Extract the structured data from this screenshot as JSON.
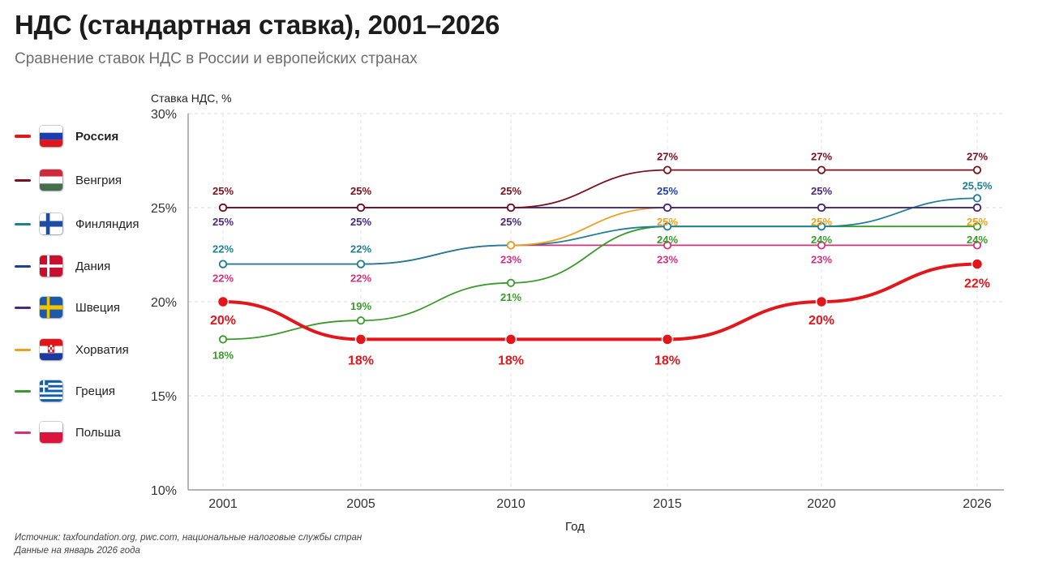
{
  "title": "НДС (стандартная ставка), 2001–2026",
  "subtitle": "Сравнение ставок НДС в России и европейских странах",
  "footer": {
    "source": "Источник: taxfoundation.org, pwc.com, национальные налоговые службы стран",
    "date_note": "Данные на январь 2026 года"
  },
  "chart_data": {
    "type": "line",
    "ylabel": "Ставка НДС, %",
    "xlabel": "Год",
    "x": [
      2001,
      2005,
      2010,
      2015,
      2020,
      2026
    ],
    "ylim": [
      10,
      30
    ],
    "yticks": [
      10,
      15,
      20,
      25,
      30
    ],
    "ytick_labels": [
      "10%",
      "15%",
      "20%",
      "25%",
      "30%"
    ],
    "grid": true,
    "legend_position": "left",
    "series": [
      {
        "name": "Россия",
        "flag": "russia-flag-icon",
        "color": "#e3161b",
        "emphasis": true,
        "values": [
          20,
          18,
          18,
          18,
          20,
          22
        ],
        "point_labels": [
          "20%",
          "18%",
          "18%",
          "18%",
          "20%",
          "22%"
        ]
      },
      {
        "name": "Венгрия",
        "flag": "hungary-flag-icon",
        "color": "#7a1020",
        "values": [
          25,
          25,
          25,
          27,
          27,
          27
        ],
        "point_labels": [
          "25%",
          "25%",
          "25%",
          "27%",
          "27%",
          "27%"
        ]
      },
      {
        "name": "Финляндия",
        "flag": "finland-flag-icon",
        "color": "#1f7f95",
        "values": [
          22,
          22,
          23,
          24,
          24,
          25.5
        ],
        "point_labels": [
          "22%",
          "22%",
          "",
          "",
          "",
          "25,5%"
        ]
      },
      {
        "name": "Дания",
        "flag": "denmark-flag-icon",
        "color": "#1f3fa0",
        "values": [
          25,
          25,
          25,
          25,
          25,
          25
        ],
        "point_labels": [
          "",
          "",
          "",
          "25%",
          "",
          ""
        ]
      },
      {
        "name": "Швеция",
        "flag": "sweden-flag-icon",
        "color": "#4a2a7a",
        "values": [
          25,
          25,
          25,
          25,
          25,
          25
        ],
        "point_labels": [
          "25%",
          "25%",
          "25%",
          "",
          "25%",
          ""
        ]
      },
      {
        "name": "Хорватия",
        "flag": "croatia-flag-icon",
        "color": "#f0a020",
        "values": [
          null,
          null,
          23,
          25,
          25,
          25
        ],
        "point_labels": [
          "",
          "",
          "",
          "25%",
          "25%",
          "25%"
        ]
      },
      {
        "name": "Греция",
        "flag": "greece-flag-icon",
        "color": "#3a9a2a",
        "values": [
          18,
          19,
          21,
          24,
          24,
          24
        ],
        "point_labels": [
          "18%",
          "19%",
          "21%",
          "24%",
          "24%",
          "24%"
        ]
      },
      {
        "name": "Польша",
        "flag": "poland-flag-icon",
        "color": "#d6317a",
        "values": [
          22,
          22,
          23,
          23,
          23,
          23
        ],
        "point_labels": [
          "22%",
          "22%",
          "23%",
          "23%",
          "23%",
          ""
        ]
      }
    ]
  }
}
